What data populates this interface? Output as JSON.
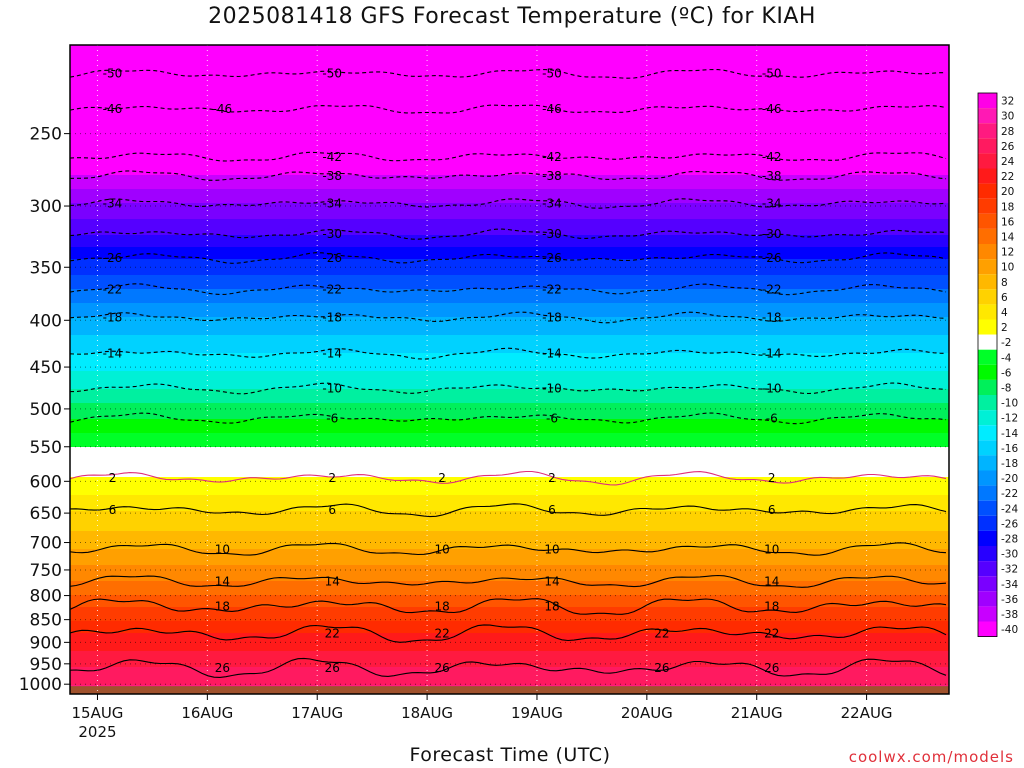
{
  "title": "2025081418 GFS Forecast Temperature (ºC) for KIAH",
  "xlabel": "Forecast Time (UTC)",
  "credit": "coolwx.com/models",
  "chart_data": {
    "type": "heatmap",
    "title": "2025081418 GFS Forecast Temperature (ºC) for KIAH",
    "xlabel": "Forecast Time (UTC)",
    "ylabel": "",
    "y_scale": "log-pressure",
    "ylim": [
      1025,
      200
    ],
    "xlim": [
      "2025-08-14T18",
      "2025-08-22T18"
    ],
    "y_ticks": [
      250,
      300,
      350,
      400,
      450,
      500,
      550,
      600,
      650,
      700,
      750,
      800,
      850,
      900,
      950,
      1000
    ],
    "x_ticks": [
      {
        "label": "15AUG",
        "sub": "2025",
        "time": "2025-08-15T00"
      },
      {
        "label": "16AUG",
        "time": "2025-08-16T00"
      },
      {
        "label": "17AUG",
        "time": "2025-08-17T00"
      },
      {
        "label": "18AUG",
        "time": "2025-08-18T00"
      },
      {
        "label": "19AUG",
        "time": "2025-08-19T00"
      },
      {
        "label": "20AUG",
        "time": "2025-08-20T00"
      },
      {
        "label": "21AUG",
        "time": "2025-08-21T00"
      },
      {
        "label": "22AUG",
        "time": "2025-08-22T00"
      }
    ],
    "colorbar": {
      "labels": [
        32,
        30,
        28,
        26,
        24,
        22,
        20,
        18,
        16,
        14,
        12,
        10,
        8,
        6,
        4,
        2,
        -2,
        -4,
        -6,
        -8,
        -10,
        -12,
        -14,
        -16,
        -18,
        -20,
        -22,
        -24,
        -26,
        -28,
        -30,
        -32,
        -34,
        -36,
        -38,
        -40
      ],
      "colors": [
        "#ff00e6",
        "#ff19b4",
        "#ff1a80",
        "#ff1a60",
        "#ff1a40",
        "#ff1a1a",
        "#ff2b00",
        "#ff3c00",
        "#ff5500",
        "#ff6e00",
        "#ff8800",
        "#ffa000",
        "#ffb800",
        "#ffd200",
        "#ffe800",
        "#ffff00",
        "#ffffff",
        "#00ff28",
        "#00fa00",
        "#00f05a",
        "#00f0a0",
        "#00f0d6",
        "#00ecff",
        "#00d2ff",
        "#00b4ff",
        "#0096ff",
        "#0078ff",
        "#0050ff",
        "#0030ff",
        "#0000ff",
        "#2800ff",
        "#5500ff",
        "#7a00ff",
        "#a000ff",
        "#c800ff",
        "#ff00ff"
      ]
    },
    "contours": [
      {
        "value": -50,
        "pressure": 215,
        "labels": [
          "15AUG",
          "17AUG",
          "19AUG",
          "21AUG"
        ]
      },
      {
        "value": -46,
        "pressure": 235,
        "labels": [
          "15AUG",
          "16AUG",
          "19AUG",
          "21AUG"
        ]
      },
      {
        "value": -42,
        "pressure": 265,
        "labels": [
          "17AUG",
          "19AUG",
          "21AUG"
        ]
      },
      {
        "value": -38,
        "pressure": 278,
        "labels": [
          "17AUG",
          "19AUG",
          "21AUG"
        ]
      },
      {
        "value": -34,
        "pressure": 298,
        "labels": [
          "15AUG",
          "17AUG",
          "19AUG",
          "21AUG"
        ]
      },
      {
        "value": -30,
        "pressure": 322,
        "labels": [
          "17AUG",
          "19AUG",
          "21AUG"
        ]
      },
      {
        "value": -26,
        "pressure": 342,
        "labels": [
          "15AUG",
          "17AUG",
          "19AUG",
          "21AUG"
        ]
      },
      {
        "value": -22,
        "pressure": 370,
        "labels": [
          "15AUG",
          "17AUG",
          "19AUG",
          "21AUG"
        ]
      },
      {
        "value": -18,
        "pressure": 397,
        "labels": [
          "15AUG",
          "17AUG",
          "19AUG",
          "21AUG"
        ]
      },
      {
        "value": -14,
        "pressure": 435,
        "labels": [
          "15AUG",
          "17AUG",
          "19AUG",
          "21AUG"
        ]
      },
      {
        "value": -10,
        "pressure": 475,
        "labels": [
          "17AUG",
          "19AUG",
          "21AUG"
        ]
      },
      {
        "value": -6,
        "pressure": 512,
        "labels": [
          "17AUG",
          "19AUG",
          "21AUG"
        ]
      },
      {
        "value": 2,
        "pressure": 595,
        "labels": [
          "15AUG",
          "17AUG",
          "18AUG",
          "19AUG",
          "21AUG"
        ]
      },
      {
        "value": 6,
        "pressure": 645,
        "labels": [
          "15AUG",
          "17AUG",
          "19AUG",
          "21AUG"
        ]
      },
      {
        "value": 10,
        "pressure": 712,
        "labels": [
          "16AUG",
          "18AUG",
          "19AUG",
          "21AUG"
        ]
      },
      {
        "value": 14,
        "pressure": 772,
        "labels": [
          "16AUG",
          "17AUG",
          "19AUG",
          "21AUG"
        ]
      },
      {
        "value": 18,
        "pressure": 822,
        "labels": [
          "16AUG",
          "18AUG",
          "19AUG",
          "21AUG"
        ]
      },
      {
        "value": 22,
        "pressure": 880,
        "labels": [
          "17AUG",
          "18AUG",
          "20AUG",
          "21AUG"
        ]
      },
      {
        "value": 26,
        "pressure": 960,
        "labels": [
          "16AUG",
          "17AUG",
          "18AUG",
          "20AUG",
          "21AUG"
        ]
      }
    ]
  }
}
